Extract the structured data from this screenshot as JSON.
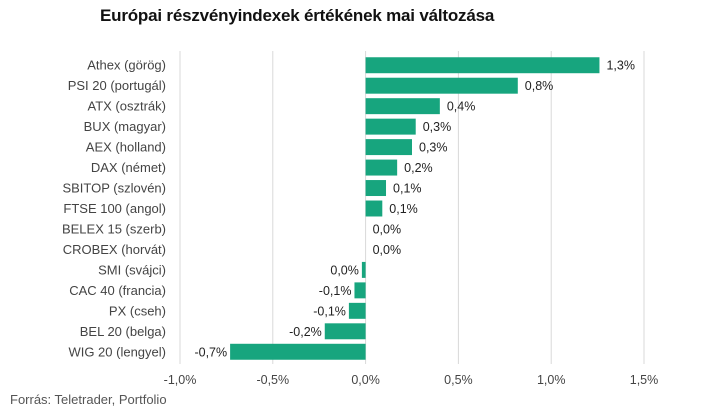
{
  "chart_data": {
    "type": "bar",
    "orientation": "horizontal",
    "title": "Európai részvényindexek értékének mai változása",
    "source": "Forrás: Teletrader, Portfolio",
    "categories": [
      "Athex (görög)",
      "PSI 20 (portugál)",
      "ATX (osztrák)",
      "BUX (magyar)",
      "AEX (holland)",
      "DAX (német)",
      "SBITOP (szlovén)",
      "FTSE 100 (angol)",
      "BELEX 15 (szerb)",
      "CROBEX (horvát)",
      "SMI (svájci)",
      "CAC 40 (francia)",
      "PX (cseh)",
      "BEL 20 (belga)",
      "WIG 20 (lengyel)"
    ],
    "values": [
      1.26,
      0.82,
      0.4,
      0.27,
      0.25,
      0.17,
      0.11,
      0.09,
      0.0,
      0.0,
      -0.02,
      -0.06,
      -0.09,
      -0.22,
      -0.73
    ],
    "value_labels": [
      "1,3%",
      "0,8%",
      "0,4%",
      "0,3%",
      "0,3%",
      "0,2%",
      "0,1%",
      "0,1%",
      "0,0%",
      "0,0%",
      "0,0%",
      "-0,1%",
      "-0,1%",
      "-0,2%",
      "-0,7%"
    ],
    "xlim": [
      -1.0,
      1.5
    ],
    "xticks": [
      -1.0,
      -0.5,
      0.0,
      0.5,
      1.0,
      1.5
    ],
    "xtick_labels": [
      "-1,0%",
      "-0,5%",
      "0,0%",
      "0,5%",
      "1,0%",
      "1,5%"
    ],
    "grid": true,
    "colors": {
      "bar": "#17a57e",
      "grid": "#d9d9d9"
    }
  }
}
